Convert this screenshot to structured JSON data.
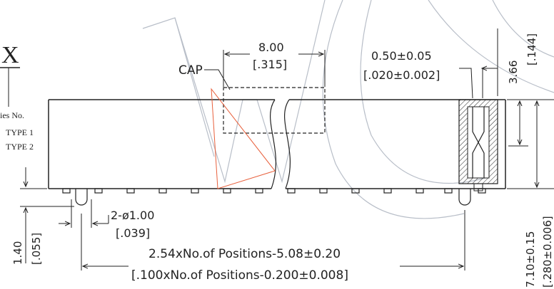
{
  "title_letter": "X",
  "series_table": {
    "header": "ies No.",
    "rows": [
      "TYPE 1",
      "TYPE 2"
    ]
  },
  "labels": {
    "cap": "CAP",
    "width_mm": "8.00",
    "width_in": "[.315]",
    "pitch_mm": "0.50±0.05",
    "pitch_in": "[.020±0.002]",
    "depth_mm": "3.66",
    "depth_in": "[.144]",
    "hole_mm": "2-ø1.00",
    "hole_in": "[.039]",
    "pin_mm": "1.40",
    "pin_in": "[.055]",
    "length_mm": "2.54xNo.of Positions-5.08±0.20",
    "length_in": "[.100xNo.of Positions-0.200±0.008]",
    "height_mm": "7.10±0.15",
    "height_in": "[.280±0.006]"
  },
  "colors": {
    "line": "#222222",
    "watermark": "#b8bec8",
    "accent": "#e8603c"
  }
}
